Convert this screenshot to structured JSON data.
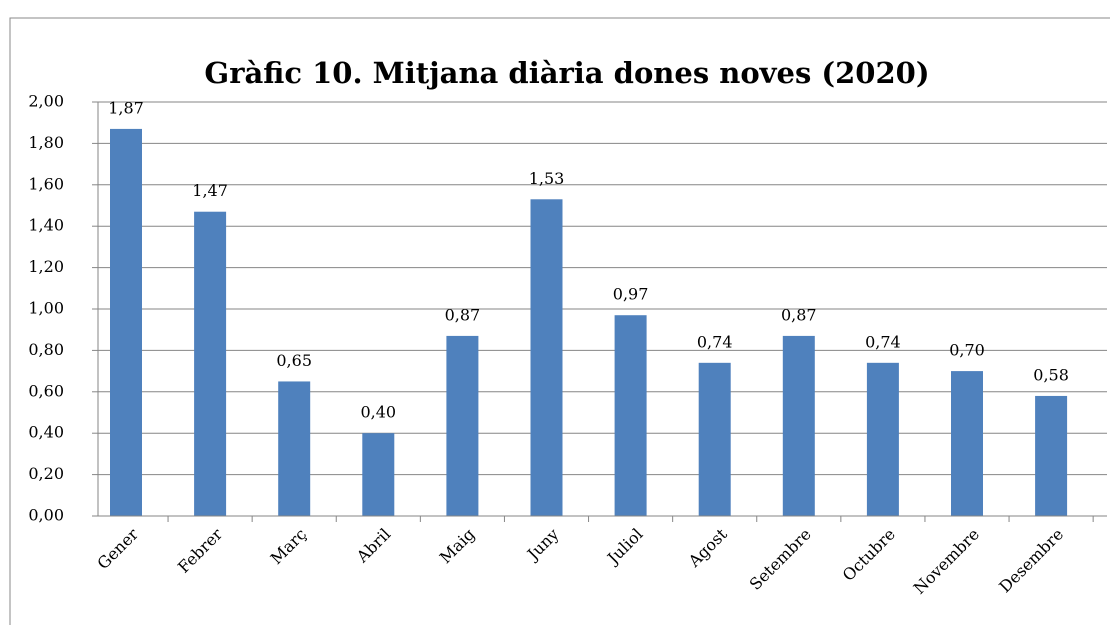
{
  "chart_data": {
    "type": "bar",
    "title": "Gràfic 10. Mitjana diària dones noves (2020)",
    "categories": [
      "Gener",
      "Febrer",
      "Març",
      "Abril",
      "Maig",
      "Juny",
      "Juliol",
      "Agost",
      "Setembre",
      "Octubre",
      "Novembre",
      "Desembre"
    ],
    "values": [
      1.87,
      1.47,
      0.65,
      0.4,
      0.87,
      1.53,
      0.97,
      0.74,
      0.87,
      0.74,
      0.7,
      0.58
    ],
    "value_labels": [
      "1,87",
      "1,47",
      "0,65",
      "0,40",
      "0,87",
      "1,53",
      "0,97",
      "0,74",
      "0,87",
      "0,74",
      "0,70",
      "0,58"
    ],
    "color": "#4f81bd",
    "ylim": [
      0,
      2
    ],
    "yticks": [
      {
        "value": 0,
        "label": "0,00"
      },
      {
        "value": 0.2,
        "label": "0,20"
      },
      {
        "value": 0.4,
        "label": "0,40"
      },
      {
        "value": 0.6,
        "label": "0,60"
      },
      {
        "value": 0.8,
        "label": "0,80"
      },
      {
        "value": 1,
        "label": "1,00"
      },
      {
        "value": 1.2,
        "label": "1,20"
      },
      {
        "value": 1.4,
        "label": "1,40"
      },
      {
        "value": 1.6,
        "label": "1,60"
      },
      {
        "value": 1.8,
        "label": "1,80"
      },
      {
        "value": 2,
        "label": "2,00"
      }
    ],
    "grid": true
  }
}
